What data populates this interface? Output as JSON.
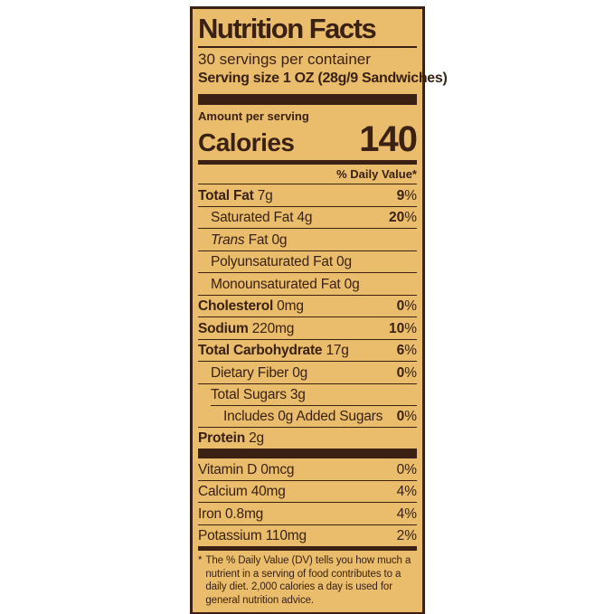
{
  "colors": {
    "page_background": "#ffffff",
    "label_background": "#e9bd6c",
    "ink": "#3a2113"
  },
  "label": {
    "title": "Nutrition Facts",
    "servings_per_container": "30 servings per container",
    "serving_size": "Serving size 1 OZ (28g/9 Sandwiches)",
    "amount_per_serving": "Amount per serving",
    "calories_label": "Calories",
    "calories_value": "140",
    "daily_value_header": "% Daily Value*",
    "nutrient_rows": [
      {
        "parts": [
          {
            "t": "Total Fat",
            "b": true
          },
          {
            "t": " 7g"
          }
        ],
        "dv_num": "9",
        "dv_unit": "%",
        "dv_bold": true,
        "indent": 0
      },
      {
        "parts": [
          {
            "t": "Saturated Fat 4g"
          }
        ],
        "dv_num": "20",
        "dv_unit": "%",
        "dv_bold": true,
        "indent": 1
      },
      {
        "parts": [
          {
            "t": "Trans",
            "i": true
          },
          {
            "t": " Fat 0g"
          }
        ],
        "dv_num": null,
        "indent": 1
      },
      {
        "parts": [
          {
            "t": "Polyunsaturated Fat 0g"
          }
        ],
        "dv_num": null,
        "indent": 1
      },
      {
        "parts": [
          {
            "t": "Monounsaturated Fat 0g"
          }
        ],
        "dv_num": null,
        "indent": 1
      },
      {
        "parts": [
          {
            "t": "Cholesterol",
            "b": true
          },
          {
            "t": " 0mg"
          }
        ],
        "dv_num": "0",
        "dv_unit": "%",
        "dv_bold": true,
        "indent": 0
      },
      {
        "parts": [
          {
            "t": "Sodium",
            "b": true
          },
          {
            "t": " 220mg"
          }
        ],
        "dv_num": "10",
        "dv_unit": "%",
        "dv_bold": true,
        "indent": 0
      },
      {
        "parts": [
          {
            "t": "Total Carbohydrate",
            "b": true
          },
          {
            "t": " 17g"
          }
        ],
        "dv_num": "6",
        "dv_unit": "%",
        "dv_bold": true,
        "indent": 0
      },
      {
        "parts": [
          {
            "t": "Dietary Fiber 0g"
          }
        ],
        "dv_num": "0",
        "dv_unit": "%",
        "dv_bold": true,
        "indent": 1
      },
      {
        "parts": [
          {
            "t": "Total Sugars 3g"
          }
        ],
        "dv_num": null,
        "indent": 1
      },
      {
        "parts": [
          {
            "t": "Includes 0g Added Sugars"
          }
        ],
        "dv_num": "0",
        "dv_unit": "%",
        "dv_bold": true,
        "indent": 2,
        "indent_line": true
      },
      {
        "parts": [
          {
            "t": "Protein",
            "b": true
          },
          {
            "t": " 2g"
          }
        ],
        "dv_num": null,
        "indent": 0
      }
    ],
    "vitamin_rows": [
      {
        "parts": [
          {
            "t": "Vitamin D 0mcg"
          }
        ],
        "dv_num": "0",
        "dv_unit": "%",
        "dv_bold": false,
        "indent": 0
      },
      {
        "parts": [
          {
            "t": "Calcium 40mg"
          }
        ],
        "dv_num": "4",
        "dv_unit": "%",
        "dv_bold": false,
        "indent": 0
      },
      {
        "parts": [
          {
            "t": "Iron 0.8mg"
          }
        ],
        "dv_num": "4",
        "dv_unit": "%",
        "dv_bold": false,
        "indent": 0
      },
      {
        "parts": [
          {
            "t": "Potassium 110mg"
          }
        ],
        "dv_num": "2",
        "dv_unit": "%",
        "dv_bold": false,
        "indent": 0
      }
    ],
    "footnote_marker": "*",
    "footnote": "The % Daily Value (DV) tells you how much a nutrient in a serving of food contributes to a daily diet. 2,000 calories a day is used for general nutrition advice."
  }
}
